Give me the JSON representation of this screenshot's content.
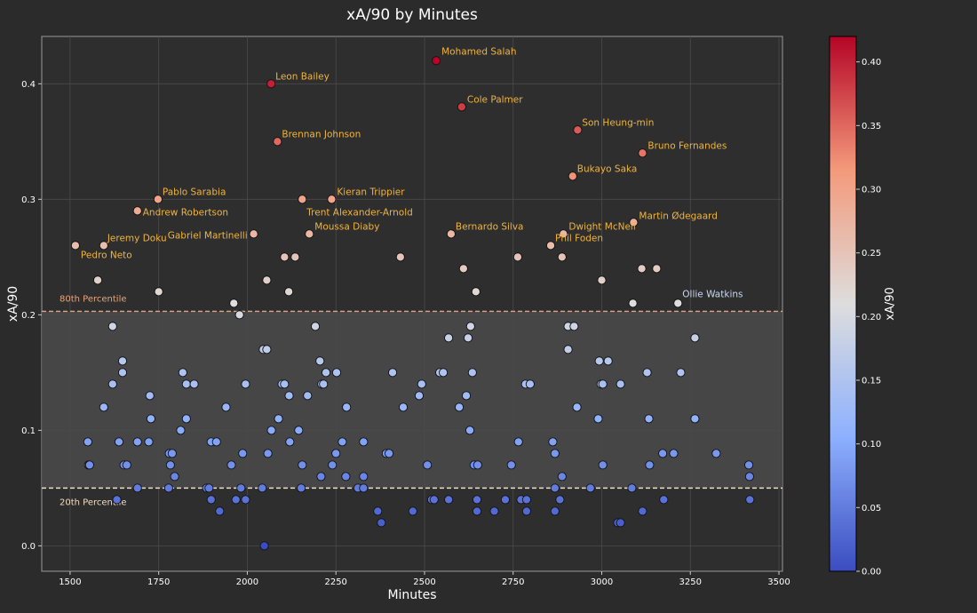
{
  "chart_data": {
    "type": "scatter",
    "title": "xA/90 by Minutes",
    "xlabel": "Minutes",
    "ylabel": "xA/90",
    "xlim": [
      1420,
      3510
    ],
    "ylim": [
      -0.022,
      0.441
    ],
    "x_ticks": [
      1500,
      1750,
      2000,
      2250,
      2500,
      2750,
      3000,
      3250,
      3500
    ],
    "x_tick_labels": [
      "1500",
      "1750",
      "2000",
      "2250",
      "2500",
      "2750",
      "3000",
      "3250",
      "3500"
    ],
    "y_ticks": [
      0.0,
      0.1,
      0.2,
      0.3,
      0.4
    ],
    "y_tick_labels": [
      "0.0",
      "0.1",
      "0.2",
      "0.3",
      "0.4"
    ],
    "grid": true,
    "colormap": "coolwarm",
    "color_value_range": [
      0.0,
      0.42
    ],
    "colorbar": {
      "label": "xA/90",
      "ticks": [
        0.0,
        0.05,
        0.1,
        0.15,
        0.2,
        0.25,
        0.3,
        0.35,
        0.4
      ],
      "tick_labels": [
        "0.00",
        "0.05",
        "0.10",
        "0.15",
        "0.20",
        "0.25",
        "0.30",
        "0.35",
        "0.40"
      ]
    },
    "reference_lines": [
      {
        "label": "80th Percentile",
        "y": 0.203,
        "color": "#e8a47e"
      },
      {
        "label": "20th Percentile",
        "y": 0.05,
        "color": "#f3dcc0"
      }
    ],
    "colors": {
      "background": "#2b2b2b",
      "plot_background": "#2e2e2e",
      "band_fill": "#4a4a4a",
      "text": "#ffffff",
      "label_gold": "#f0b43c",
      "label_blue": "#c7d7f2",
      "grid": "#4a4a4a"
    },
    "labeled_points": [
      {
        "name": "Mohamed Salah",
        "x": 2533,
        "y": 0.42
      },
      {
        "name": "Leon Bailey",
        "x": 2067,
        "y": 0.4
      },
      {
        "name": "Cole Palmer",
        "x": 2605,
        "y": 0.38
      },
      {
        "name": "Son Heung-min",
        "x": 2932,
        "y": 0.36
      },
      {
        "name": "Brennan Johnson",
        "x": 2085,
        "y": 0.35
      },
      {
        "name": "Bruno Fernandes",
        "x": 3115,
        "y": 0.34
      },
      {
        "name": "Bukayo Saka",
        "x": 2918,
        "y": 0.32
      },
      {
        "name": "Pablo Sarabia",
        "x": 1748,
        "y": 0.3
      },
      {
        "name": "Kieran Trippier",
        "x": 2238,
        "y": 0.3
      },
      {
        "name": "Andrew Robertson",
        "x": 1690,
        "y": 0.29
      },
      {
        "name": "Trent Alexander-Arnold",
        "x": 2155,
        "y": 0.3
      },
      {
        "name": "Martin Ødegaard",
        "x": 3090,
        "y": 0.28
      },
      {
        "name": "Moussa Diaby",
        "x": 2175,
        "y": 0.27
      },
      {
        "name": "Bernardo Silva",
        "x": 2575,
        "y": 0.27
      },
      {
        "name": "Dwight McNeil",
        "x": 2892,
        "y": 0.27
      },
      {
        "name": "Jeremy Doku",
        "x": 1595,
        "y": 0.26
      },
      {
        "name": "Gabriel Martinelli",
        "x": 2018,
        "y": 0.27
      },
      {
        "name": "Phil Foden",
        "x": 2856,
        "y": 0.26
      },
      {
        "name": "Pedro Neto",
        "x": 1515,
        "y": 0.26
      },
      {
        "name": "Ollie Watkins",
        "x": 3215,
        "y": 0.21
      }
    ],
    "points": [
      {
        "x": 2533,
        "y": 0.42
      },
      {
        "x": 2067,
        "y": 0.4
      },
      {
        "x": 2605,
        "y": 0.38
      },
      {
        "x": 2932,
        "y": 0.36
      },
      {
        "x": 2085,
        "y": 0.35
      },
      {
        "x": 3115,
        "y": 0.34
      },
      {
        "x": 2918,
        "y": 0.32
      },
      {
        "x": 1748,
        "y": 0.3
      },
      {
        "x": 2238,
        "y": 0.3
      },
      {
        "x": 2155,
        "y": 0.3
      },
      {
        "x": 1690,
        "y": 0.29
      },
      {
        "x": 3090,
        "y": 0.28
      },
      {
        "x": 2175,
        "y": 0.27
      },
      {
        "x": 2575,
        "y": 0.27
      },
      {
        "x": 2892,
        "y": 0.27
      },
      {
        "x": 2018,
        "y": 0.27
      },
      {
        "x": 1595,
        "y": 0.26
      },
      {
        "x": 2856,
        "y": 0.26
      },
      {
        "x": 1515,
        "y": 0.26
      },
      {
        "x": 3215,
        "y": 0.21
      },
      {
        "x": 1578,
        "y": 0.23
      },
      {
        "x": 1750,
        "y": 0.22
      },
      {
        "x": 2055,
        "y": 0.23
      },
      {
        "x": 2105,
        "y": 0.25
      },
      {
        "x": 2135,
        "y": 0.25
      },
      {
        "x": 2117,
        "y": 0.22
      },
      {
        "x": 2432,
        "y": 0.25
      },
      {
        "x": 2610,
        "y": 0.24
      },
      {
        "x": 2645,
        "y": 0.22
      },
      {
        "x": 2763,
        "y": 0.25
      },
      {
        "x": 2888,
        "y": 0.25
      },
      {
        "x": 3000,
        "y": 0.23
      },
      {
        "x": 3113,
        "y": 0.24
      },
      {
        "x": 3155,
        "y": 0.24
      },
      {
        "x": 3088,
        "y": 0.21
      },
      {
        "x": 1962,
        "y": 0.21
      },
      {
        "x": 1978,
        "y": 0.2
      },
      {
        "x": 1620,
        "y": 0.19
      },
      {
        "x": 1648,
        "y": 0.16
      },
      {
        "x": 1648,
        "y": 0.15
      },
      {
        "x": 1620,
        "y": 0.14
      },
      {
        "x": 1595,
        "y": 0.12
      },
      {
        "x": 1725,
        "y": 0.13
      },
      {
        "x": 1728,
        "y": 0.11
      },
      {
        "x": 1818,
        "y": 0.15
      },
      {
        "x": 1828,
        "y": 0.14
      },
      {
        "x": 1850,
        "y": 0.14
      },
      {
        "x": 1828,
        "y": 0.11
      },
      {
        "x": 1812,
        "y": 0.1
      },
      {
        "x": 1940,
        "y": 0.12
      },
      {
        "x": 1995,
        "y": 0.14
      },
      {
        "x": 2045,
        "y": 0.17
      },
      {
        "x": 2055,
        "y": 0.17
      },
      {
        "x": 2098,
        "y": 0.14
      },
      {
        "x": 2105,
        "y": 0.14
      },
      {
        "x": 2118,
        "y": 0.13
      },
      {
        "x": 2088,
        "y": 0.11
      },
      {
        "x": 2068,
        "y": 0.1
      },
      {
        "x": 2145,
        "y": 0.1
      },
      {
        "x": 2170,
        "y": 0.13
      },
      {
        "x": 2192,
        "y": 0.19
      },
      {
        "x": 2205,
        "y": 0.16
      },
      {
        "x": 2210,
        "y": 0.14
      },
      {
        "x": 2215,
        "y": 0.14
      },
      {
        "x": 2222,
        "y": 0.15
      },
      {
        "x": 2252,
        "y": 0.15
      },
      {
        "x": 2280,
        "y": 0.12
      },
      {
        "x": 2410,
        "y": 0.15
      },
      {
        "x": 2440,
        "y": 0.12
      },
      {
        "x": 2485,
        "y": 0.13
      },
      {
        "x": 2492,
        "y": 0.14
      },
      {
        "x": 2543,
        "y": 0.15
      },
      {
        "x": 2553,
        "y": 0.15
      },
      {
        "x": 2568,
        "y": 0.18
      },
      {
        "x": 2598,
        "y": 0.12
      },
      {
        "x": 2618,
        "y": 0.13
      },
      {
        "x": 2623,
        "y": 0.18
      },
      {
        "x": 2630,
        "y": 0.19
      },
      {
        "x": 2635,
        "y": 0.15
      },
      {
        "x": 2628,
        "y": 0.1
      },
      {
        "x": 2785,
        "y": 0.14
      },
      {
        "x": 2798,
        "y": 0.14
      },
      {
        "x": 2905,
        "y": 0.19
      },
      {
        "x": 2922,
        "y": 0.19
      },
      {
        "x": 2905,
        "y": 0.17
      },
      {
        "x": 2930,
        "y": 0.12
      },
      {
        "x": 2993,
        "y": 0.16
      },
      {
        "x": 3018,
        "y": 0.16
      },
      {
        "x": 2998,
        "y": 0.14
      },
      {
        "x": 3003,
        "y": 0.14
      },
      {
        "x": 3053,
        "y": 0.14
      },
      {
        "x": 2990,
        "y": 0.11
      },
      {
        "x": 3128,
        "y": 0.15
      },
      {
        "x": 3133,
        "y": 0.11
      },
      {
        "x": 3223,
        "y": 0.15
      },
      {
        "x": 3263,
        "y": 0.18
      },
      {
        "x": 3263,
        "y": 0.11
      },
      {
        "x": 1550,
        "y": 0.09
      },
      {
        "x": 1552,
        "y": 0.07
      },
      {
        "x": 1555,
        "y": 0.07
      },
      {
        "x": 1638,
        "y": 0.09
      },
      {
        "x": 1652,
        "y": 0.07
      },
      {
        "x": 1660,
        "y": 0.07
      },
      {
        "x": 1690,
        "y": 0.09
      },
      {
        "x": 1722,
        "y": 0.09
      },
      {
        "x": 1780,
        "y": 0.08
      },
      {
        "x": 1788,
        "y": 0.08
      },
      {
        "x": 1783,
        "y": 0.07
      },
      {
        "x": 1795,
        "y": 0.06
      },
      {
        "x": 1898,
        "y": 0.09
      },
      {
        "x": 1913,
        "y": 0.09
      },
      {
        "x": 1955,
        "y": 0.07
      },
      {
        "x": 1987,
        "y": 0.08
      },
      {
        "x": 2058,
        "y": 0.08
      },
      {
        "x": 2120,
        "y": 0.09
      },
      {
        "x": 2155,
        "y": 0.07
      },
      {
        "x": 2208,
        "y": 0.06
      },
      {
        "x": 2240,
        "y": 0.07
      },
      {
        "x": 2250,
        "y": 0.08
      },
      {
        "x": 2268,
        "y": 0.09
      },
      {
        "x": 2278,
        "y": 0.06
      },
      {
        "x": 2328,
        "y": 0.09
      },
      {
        "x": 2328,
        "y": 0.06
      },
      {
        "x": 2392,
        "y": 0.08
      },
      {
        "x": 2400,
        "y": 0.08
      },
      {
        "x": 2508,
        "y": 0.07
      },
      {
        "x": 2640,
        "y": 0.07
      },
      {
        "x": 2650,
        "y": 0.07
      },
      {
        "x": 2745,
        "y": 0.07
      },
      {
        "x": 2765,
        "y": 0.09
      },
      {
        "x": 2862,
        "y": 0.09
      },
      {
        "x": 2868,
        "y": 0.08
      },
      {
        "x": 2888,
        "y": 0.06
      },
      {
        "x": 3003,
        "y": 0.07
      },
      {
        "x": 3135,
        "y": 0.07
      },
      {
        "x": 3172,
        "y": 0.08
      },
      {
        "x": 3203,
        "y": 0.08
      },
      {
        "x": 3323,
        "y": 0.08
      },
      {
        "x": 3415,
        "y": 0.07
      },
      {
        "x": 3417,
        "y": 0.06
      },
      {
        "x": 1632,
        "y": 0.04
      },
      {
        "x": 1690,
        "y": 0.05
      },
      {
        "x": 1778,
        "y": 0.05
      },
      {
        "x": 1885,
        "y": 0.05
      },
      {
        "x": 1892,
        "y": 0.05
      },
      {
        "x": 1898,
        "y": 0.04
      },
      {
        "x": 1922,
        "y": 0.03
      },
      {
        "x": 1968,
        "y": 0.04
      },
      {
        "x": 1982,
        "y": 0.05
      },
      {
        "x": 1995,
        "y": 0.04
      },
      {
        "x": 2042,
        "y": 0.05
      },
      {
        "x": 2048,
        "y": 0.0
      },
      {
        "x": 2152,
        "y": 0.05
      },
      {
        "x": 2312,
        "y": 0.05
      },
      {
        "x": 2328,
        "y": 0.05
      },
      {
        "x": 2368,
        "y": 0.03
      },
      {
        "x": 2378,
        "y": 0.02
      },
      {
        "x": 2467,
        "y": 0.03
      },
      {
        "x": 2520,
        "y": 0.04
      },
      {
        "x": 2527,
        "y": 0.04
      },
      {
        "x": 2568,
        "y": 0.04
      },
      {
        "x": 2648,
        "y": 0.04
      },
      {
        "x": 2648,
        "y": 0.03
      },
      {
        "x": 2697,
        "y": 0.03
      },
      {
        "x": 2728,
        "y": 0.04
      },
      {
        "x": 2772,
        "y": 0.04
      },
      {
        "x": 2788,
        "y": 0.04
      },
      {
        "x": 2788,
        "y": 0.03
      },
      {
        "x": 2868,
        "y": 0.05
      },
      {
        "x": 2868,
        "y": 0.03
      },
      {
        "x": 2882,
        "y": 0.04
      },
      {
        "x": 2968,
        "y": 0.05
      },
      {
        "x": 3045,
        "y": 0.02
      },
      {
        "x": 3053,
        "y": 0.02
      },
      {
        "x": 3085,
        "y": 0.05
      },
      {
        "x": 3115,
        "y": 0.03
      },
      {
        "x": 3175,
        "y": 0.04
      },
      {
        "x": 3418,
        "y": 0.04
      }
    ]
  }
}
